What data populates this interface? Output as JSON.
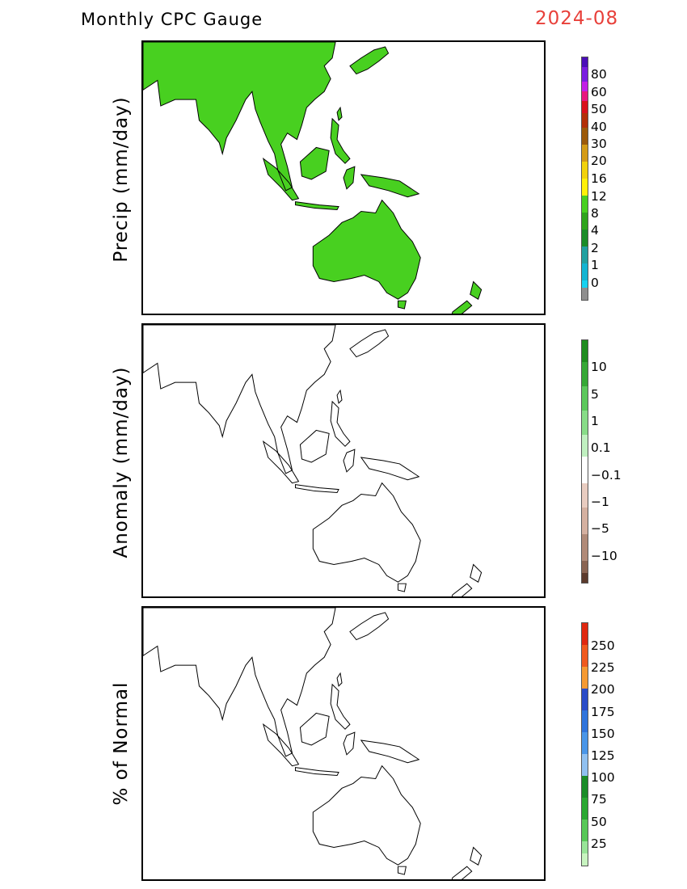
{
  "header": {
    "title": "Monthly CPC Gauge",
    "date": "2024-08"
  },
  "panels": [
    {
      "id": "precip",
      "ylabel": "Precip (mm/day)",
      "legend": {
        "colors": [
          "#4b0db8",
          "#7a1ce0",
          "#c21ee6",
          "#e8157e",
          "#d9101c",
          "#b32f08",
          "#9c5a0a",
          "#d49b16",
          "#f2d20c",
          "#fff10a",
          "#48d020",
          "#2ea41c",
          "#1a8c28",
          "#22a0a0",
          "#14b4d2",
          "#18d2f0",
          "#8f8f8f"
        ],
        "labels": [
          "80",
          "60",
          "50",
          "40",
          "30",
          "20",
          "16",
          "12",
          "8",
          "4",
          "2",
          "1",
          "0"
        ]
      }
    },
    {
      "id": "anomaly",
      "ylabel": "Anomaly (mm/day)",
      "legend": {
        "colors": [
          "#1e8c1e",
          "#36a836",
          "#5cc85c",
          "#88dc88",
          "#c0f0c0",
          "#ffffff",
          "#e8ccc0",
          "#d4b0a0",
          "#b08a78",
          "#8a6452",
          "#5c3a2c"
        ],
        "labels": [
          "10",
          "5",
          "1",
          "0.1",
          "−0.1",
          "−1",
          "−5",
          "−10"
        ]
      }
    },
    {
      "id": "percent",
      "ylabel": "% of Normal",
      "legend": {
        "colors": [
          "#e02810",
          "#f05a1e",
          "#f69a32",
          "#2a4cc8",
          "#2f74dc",
          "#4a96e8",
          "#90c0f0",
          "#1a8c28",
          "#2aa832",
          "#58c858",
          "#98e498",
          "#c8f4c0"
        ],
        "labels": [
          "250",
          "225",
          "200",
          "175",
          "150",
          "125",
          "100",
          "75",
          "50",
          "25"
        ]
      }
    }
  ]
}
